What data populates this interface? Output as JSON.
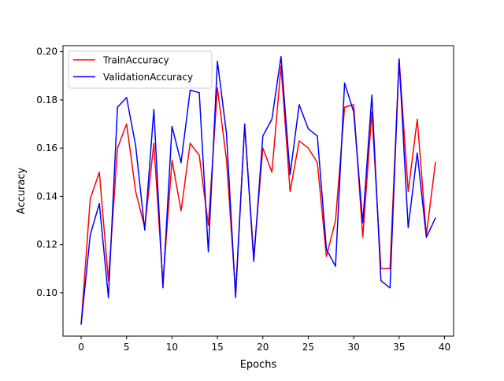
{
  "chart_data": {
    "type": "line",
    "title": "",
    "xlabel": "Epochs",
    "ylabel": "Accuracy",
    "xlim": [
      -2,
      41
    ],
    "ylim": [
      0.082,
      0.2025
    ],
    "xticks": [
      0,
      5,
      10,
      15,
      20,
      25,
      30,
      35,
      40
    ],
    "xtick_labels": [
      "0",
      "5",
      "10",
      "15",
      "20",
      "25",
      "30",
      "35",
      "40"
    ],
    "yticks": [
      0.1,
      0.12,
      0.14,
      0.16,
      0.18,
      0.2
    ],
    "ytick_labels": [
      "0.10",
      "0.12",
      "0.14",
      "0.16",
      "0.18",
      "0.20"
    ],
    "grid": false,
    "legend_position": "top-left",
    "x": [
      0,
      1,
      2,
      3,
      4,
      5,
      6,
      7,
      8,
      9,
      10,
      11,
      12,
      13,
      14,
      15,
      16,
      17,
      18,
      19,
      20,
      21,
      22,
      23,
      24,
      25,
      26,
      27,
      28,
      29,
      30,
      31,
      32,
      33,
      34,
      35,
      36,
      37,
      38,
      39
    ],
    "series": [
      {
        "name": "TrainAccuracy",
        "color": "#ff0000",
        "values": [
          0.087,
          0.139,
          0.15,
          0.105,
          0.16,
          0.17,
          0.142,
          0.127,
          0.162,
          0.104,
          0.155,
          0.134,
          0.162,
          0.157,
          0.128,
          0.185,
          0.155,
          0.1,
          0.169,
          0.115,
          0.16,
          0.15,
          0.194,
          0.142,
          0.163,
          0.16,
          0.154,
          0.115,
          0.13,
          0.177,
          0.178,
          0.123,
          0.175,
          0.11,
          0.11,
          0.197,
          0.142,
          0.172,
          0.124,
          0.154
        ]
      },
      {
        "name": "ValidationAccuracy",
        "color": "#0000ff",
        "values": [
          0.087,
          0.124,
          0.137,
          0.098,
          0.177,
          0.181,
          0.161,
          0.126,
          0.176,
          0.102,
          0.169,
          0.154,
          0.184,
          0.183,
          0.117,
          0.196,
          0.166,
          0.098,
          0.17,
          0.113,
          0.165,
          0.172,
          0.198,
          0.149,
          0.178,
          0.168,
          0.165,
          0.118,
          0.111,
          0.187,
          0.175,
          0.129,
          0.182,
          0.105,
          0.102,
          0.197,
          0.127,
          0.158,
          0.123,
          0.131
        ]
      }
    ]
  }
}
